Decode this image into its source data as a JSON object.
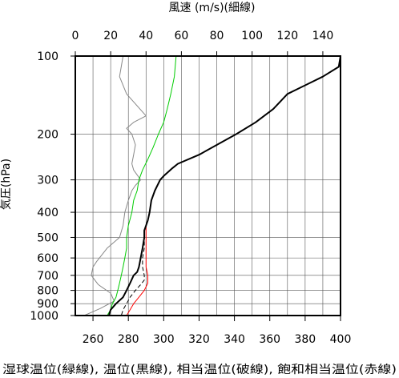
{
  "chart_data": {
    "type": "line",
    "top_axis": {
      "label": "風速 (m/s)(細線)",
      "range": [
        0,
        150
      ],
      "ticks": [
        0,
        20,
        40,
        60,
        80,
        100,
        120,
        140
      ]
    },
    "bottom_axis": {
      "label": "湿球温位(緑線), 温位(黒線), 相当温位(破線), 飽和相当温位(赤線)",
      "range": [
        250,
        400
      ],
      "ticks": [
        260,
        280,
        300,
        320,
        340,
        360,
        380,
        400
      ]
    },
    "y_axis": {
      "label": "気圧(hPa)",
      "scale": "log",
      "range": [
        1000,
        100
      ],
      "ticks": [
        100,
        200,
        300,
        400,
        500,
        600,
        700,
        800,
        900,
        1000
      ]
    },
    "grid": true,
    "series": [
      {
        "color": "#00cc00",
        "axis": "bottom",
        "style": "solid",
        "width": 1,
        "points": [
          [
            307,
            100
          ],
          [
            306,
            120
          ],
          [
            304,
            140
          ],
          [
            302,
            160
          ],
          [
            300,
            180
          ],
          [
            297,
            200
          ],
          [
            294,
            225
          ],
          [
            291,
            250
          ],
          [
            288,
            275
          ],
          [
            286,
            300
          ],
          [
            285,
            330
          ],
          [
            283,
            360
          ],
          [
            282,
            400
          ],
          [
            280,
            450
          ],
          [
            279,
            500
          ],
          [
            279,
            550
          ],
          [
            278,
            600
          ],
          [
            277,
            650
          ],
          [
            276,
            700
          ],
          [
            275,
            750
          ],
          [
            274,
            800
          ],
          [
            273,
            850
          ],
          [
            271,
            900
          ],
          [
            270,
            950
          ],
          [
            268,
            1000
          ]
        ]
      },
      {
        "color": "#888888",
        "axis": "top",
        "style": "solid",
        "width": 1,
        "points": [
          [
            27,
            100
          ],
          [
            25,
            120
          ],
          [
            29,
            140
          ],
          [
            40,
            170
          ],
          [
            33,
            180
          ],
          [
            29,
            190
          ],
          [
            32,
            200
          ],
          [
            34,
            220
          ],
          [
            33,
            240
          ],
          [
            32,
            260
          ],
          [
            33,
            275
          ],
          [
            37,
            300
          ],
          [
            34,
            315
          ],
          [
            32,
            330
          ],
          [
            30,
            360
          ],
          [
            28,
            400
          ],
          [
            27,
            450
          ],
          [
            25,
            500
          ],
          [
            18,
            550
          ],
          [
            12,
            620
          ],
          [
            10,
            650
          ],
          [
            9,
            700
          ],
          [
            13,
            760
          ],
          [
            20,
            820
          ],
          [
            22,
            880
          ],
          [
            14,
            940
          ],
          [
            5,
            1000
          ]
        ]
      },
      {
        "color": "#000000",
        "axis": "bottom",
        "style": "solid",
        "width": 2,
        "points": [
          [
            400,
            100
          ],
          [
            399,
            110
          ],
          [
            390,
            120
          ],
          [
            370,
            140
          ],
          [
            362,
            160
          ],
          [
            352,
            180
          ],
          [
            341,
            200
          ],
          [
            320,
            240
          ],
          [
            308,
            260
          ],
          [
            305,
            270
          ],
          [
            300,
            290
          ],
          [
            298,
            300
          ],
          [
            295,
            330
          ],
          [
            293,
            360
          ],
          [
            292,
            400
          ],
          [
            291,
            430
          ],
          [
            290,
            450
          ],
          [
            289,
            470
          ],
          [
            289,
            500
          ],
          [
            288,
            550
          ],
          [
            287,
            600
          ],
          [
            286,
            650
          ],
          [
            285,
            680
          ],
          [
            283,
            700
          ],
          [
            281,
            750
          ],
          [
            279,
            800
          ],
          [
            277,
            850
          ],
          [
            273,
            900
          ],
          [
            270,
            950
          ],
          [
            269,
            1000
          ]
        ]
      },
      {
        "color": "#000000",
        "axis": "bottom",
        "style": "dashed",
        "width": 1,
        "points": [
          [
            400,
            100
          ],
          [
            399,
            110
          ],
          [
            390,
            120
          ],
          [
            370,
            140
          ],
          [
            362,
            160
          ],
          [
            352,
            180
          ],
          [
            341,
            200
          ],
          [
            320,
            240
          ],
          [
            308,
            260
          ],
          [
            305,
            270
          ],
          [
            300,
            290
          ],
          [
            298,
            300
          ],
          [
            295,
            330
          ],
          [
            293,
            360
          ],
          [
            292,
            400
          ],
          [
            291,
            430
          ],
          [
            290,
            450
          ],
          [
            289,
            470
          ],
          [
            289,
            500
          ],
          [
            289,
            550
          ],
          [
            288,
            600
          ],
          [
            288,
            650
          ],
          [
            289,
            700
          ],
          [
            289,
            730
          ],
          [
            287,
            760
          ],
          [
            284,
            800
          ],
          [
            281,
            850
          ],
          [
            279,
            900
          ],
          [
            277,
            950
          ],
          [
            276,
            1000
          ]
        ]
      },
      {
        "color": "#ff0000",
        "axis": "bottom",
        "style": "solid",
        "width": 1,
        "points": [
          [
            400,
            100
          ],
          [
            399,
            110
          ],
          [
            390,
            120
          ],
          [
            370,
            140
          ],
          [
            362,
            160
          ],
          [
            352,
            180
          ],
          [
            341,
            200
          ],
          [
            320,
            240
          ],
          [
            308,
            260
          ],
          [
            305,
            270
          ],
          [
            300,
            290
          ],
          [
            298,
            300
          ],
          [
            295,
            330
          ],
          [
            293,
            360
          ],
          [
            292,
            400
          ],
          [
            291,
            430
          ],
          [
            290,
            450
          ],
          [
            290,
            470
          ],
          [
            290,
            500
          ],
          [
            290,
            550
          ],
          [
            290,
            600
          ],
          [
            290,
            650
          ],
          [
            291,
            700
          ],
          [
            291,
            750
          ],
          [
            289,
            800
          ],
          [
            286,
            850
          ],
          [
            283,
            900
          ],
          [
            281,
            950
          ],
          [
            279,
            1000
          ]
        ]
      }
    ]
  }
}
